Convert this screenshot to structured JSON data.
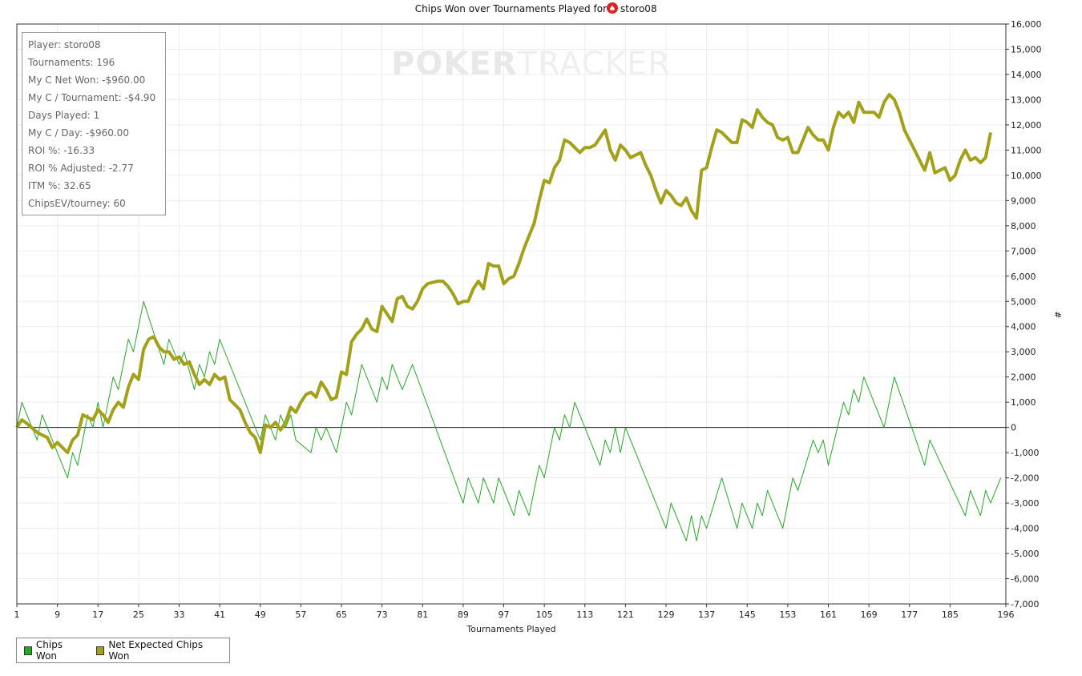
{
  "chart_data": {
    "type": "line",
    "title": "Chips Won over Tournaments Played for",
    "title_player": "storo08",
    "title_icon": "spade-suit-icon",
    "xlabel": "Tournaments Played",
    "ylabel": "#",
    "xlim": [
      1,
      196
    ],
    "ylim": [
      -7000,
      16000
    ],
    "x_ticks": [
      1,
      9,
      17,
      25,
      33,
      41,
      49,
      57,
      65,
      73,
      81,
      89,
      97,
      105,
      113,
      121,
      129,
      137,
      145,
      153,
      161,
      169,
      177,
      185,
      196
    ],
    "y_ticks": [
      "-7,000",
      "-6,000",
      "-5,000",
      "-4,000",
      "-3,000",
      "-2,000",
      "-1,000",
      "0",
      "1,000",
      "2,000",
      "3,000",
      "4,000",
      "5,000",
      "6,000",
      "7,000",
      "8,000",
      "9,000",
      "10,000",
      "11,000",
      "12,000",
      "13,000",
      "14,000",
      "15,000",
      "16,000"
    ],
    "grid": true,
    "legend_position": "bottom-left",
    "series": [
      {
        "name": "Chips Won",
        "color": "#22aa22",
        "points": [
          [
            1,
            0
          ],
          [
            2,
            1000
          ],
          [
            5,
            -500
          ],
          [
            6,
            500
          ],
          [
            11,
            -2000
          ],
          [
            12,
            -1000
          ],
          [
            13,
            -1500
          ],
          [
            15,
            500
          ],
          [
            16,
            0
          ],
          [
            17,
            1000
          ],
          [
            18,
            0
          ],
          [
            20,
            2000
          ],
          [
            21,
            1500
          ],
          [
            23,
            3500
          ],
          [
            24,
            3000
          ],
          [
            26,
            5000
          ],
          [
            30,
            2500
          ],
          [
            31,
            3500
          ],
          [
            33,
            2500
          ],
          [
            34,
            3000
          ],
          [
            36,
            1500
          ],
          [
            37,
            2500
          ],
          [
            38,
            2000
          ],
          [
            39,
            3000
          ],
          [
            40,
            2500
          ],
          [
            41,
            3500
          ],
          [
            48,
            0
          ],
          [
            49,
            -500
          ],
          [
            50,
            500
          ],
          [
            51,
            0
          ],
          [
            52,
            -500
          ],
          [
            53,
            500
          ],
          [
            54,
            0
          ],
          [
            55,
            500
          ],
          [
            56,
            -500
          ],
          [
            59,
            -1000
          ],
          [
            60,
            0
          ],
          [
            61,
            -500
          ],
          [
            62,
            0
          ],
          [
            64,
            -1000
          ],
          [
            66,
            1000
          ],
          [
            67,
            500
          ],
          [
            69,
            2500
          ],
          [
            72,
            1000
          ],
          [
            73,
            2000
          ],
          [
            74,
            1500
          ],
          [
            75,
            2500
          ],
          [
            76,
            2000
          ],
          [
            77,
            1500
          ],
          [
            79,
            2500
          ],
          [
            89,
            -3000
          ],
          [
            90,
            -2000
          ],
          [
            92,
            -3000
          ],
          [
            93,
            -2000
          ],
          [
            95,
            -3000
          ],
          [
            96,
            -2000
          ],
          [
            99,
            -3500
          ],
          [
            100,
            -2500
          ],
          [
            102,
            -3500
          ],
          [
            104,
            -1500
          ],
          [
            105,
            -2000
          ],
          [
            107,
            0
          ],
          [
            108,
            -500
          ],
          [
            109,
            500
          ],
          [
            110,
            0
          ],
          [
            111,
            1000
          ],
          [
            116,
            -1500
          ],
          [
            117,
            -500
          ],
          [
            118,
            -1000
          ],
          [
            119,
            0
          ],
          [
            120,
            -1000
          ],
          [
            121,
            0
          ],
          [
            129,
            -4000
          ],
          [
            130,
            -3000
          ],
          [
            133,
            -4500
          ],
          [
            134,
            -3500
          ],
          [
            135,
            -4500
          ],
          [
            136,
            -3500
          ],
          [
            137,
            -4000
          ],
          [
            140,
            -2000
          ],
          [
            143,
            -4000
          ],
          [
            144,
            -3000
          ],
          [
            146,
            -4000
          ],
          [
            147,
            -3000
          ],
          [
            148,
            -3500
          ],
          [
            149,
            -2500
          ],
          [
            152,
            -4000
          ],
          [
            154,
            -2000
          ],
          [
            155,
            -2500
          ],
          [
            158,
            -500
          ],
          [
            159,
            -1000
          ],
          [
            160,
            -500
          ],
          [
            161,
            -1500
          ],
          [
            164,
            1000
          ],
          [
            165,
            500
          ],
          [
            166,
            1500
          ],
          [
            167,
            1000
          ],
          [
            168,
            2000
          ],
          [
            172,
            0
          ],
          [
            174,
            2000
          ],
          [
            180,
            -1500
          ],
          [
            181,
            -500
          ],
          [
            188,
            -3500
          ],
          [
            189,
            -2500
          ],
          [
            191,
            -3500
          ],
          [
            192,
            -2500
          ],
          [
            193,
            -3000
          ],
          [
            195,
            -2000
          ]
        ]
      },
      {
        "name": "Net Expected Chips Won",
        "color": "#a3a01a",
        "points": [
          [
            1,
            0
          ],
          [
            2,
            300
          ],
          [
            3,
            150
          ],
          [
            5,
            -200
          ],
          [
            6,
            -300
          ],
          [
            7,
            -400
          ],
          [
            8,
            -800
          ],
          [
            9,
            -600
          ],
          [
            11,
            -1000
          ],
          [
            12,
            -500
          ],
          [
            13,
            -300
          ],
          [
            14,
            500
          ],
          [
            15,
            400
          ],
          [
            16,
            300
          ],
          [
            17,
            700
          ],
          [
            18,
            500
          ],
          [
            19,
            200
          ],
          [
            20,
            700
          ],
          [
            21,
            1000
          ],
          [
            22,
            800
          ],
          [
            23,
            1600
          ],
          [
            24,
            2100
          ],
          [
            25,
            1900
          ],
          [
            26,
            3100
          ],
          [
            27,
            3500
          ],
          [
            28,
            3600
          ],
          [
            29,
            3200
          ],
          [
            30,
            3000
          ],
          [
            31,
            3000
          ],
          [
            32,
            2700
          ],
          [
            33,
            2800
          ],
          [
            34,
            2500
          ],
          [
            35,
            2600
          ],
          [
            36,
            2100
          ],
          [
            37,
            1700
          ],
          [
            38,
            1900
          ],
          [
            39,
            1700
          ],
          [
            40,
            2100
          ],
          [
            41,
            1900
          ],
          [
            42,
            2000
          ],
          [
            43,
            1100
          ],
          [
            44,
            900
          ],
          [
            45,
            700
          ],
          [
            46,
            200
          ],
          [
            47,
            -200
          ],
          [
            48,
            -400
          ],
          [
            49,
            -1000
          ],
          [
            50,
            100
          ],
          [
            51,
            0
          ],
          [
            52,
            200
          ],
          [
            53,
            -100
          ],
          [
            54,
            200
          ],
          [
            55,
            800
          ],
          [
            56,
            600
          ],
          [
            57,
            1000
          ],
          [
            58,
            1300
          ],
          [
            59,
            1400
          ],
          [
            60,
            1200
          ],
          [
            61,
            1800
          ],
          [
            62,
            1500
          ],
          [
            63,
            1100
          ],
          [
            64,
            1200
          ],
          [
            65,
            2200
          ],
          [
            66,
            2100
          ],
          [
            67,
            3400
          ],
          [
            68,
            3700
          ],
          [
            69,
            3900
          ],
          [
            70,
            4300
          ],
          [
            71,
            3900
          ],
          [
            72,
            3800
          ],
          [
            73,
            4800
          ],
          [
            74,
            4500
          ],
          [
            75,
            4200
          ],
          [
            76,
            5100
          ],
          [
            77,
            5200
          ],
          [
            78,
            4800
          ],
          [
            79,
            4700
          ],
          [
            80,
            5000
          ],
          [
            81,
            5500
          ],
          [
            82,
            5700
          ],
          [
            84,
            5800
          ],
          [
            85,
            5800
          ],
          [
            86,
            5600
          ],
          [
            87,
            5300
          ],
          [
            88,
            4900
          ],
          [
            89,
            5000
          ],
          [
            90,
            5000
          ],
          [
            91,
            5500
          ],
          [
            92,
            5800
          ],
          [
            93,
            5500
          ],
          [
            94,
            6500
          ],
          [
            95,
            6400
          ],
          [
            96,
            6400
          ],
          [
            97,
            5700
          ],
          [
            98,
            5900
          ],
          [
            99,
            6000
          ],
          [
            100,
            6500
          ],
          [
            101,
            7100
          ],
          [
            102,
            7600
          ],
          [
            103,
            8100
          ],
          [
            104,
            9000
          ],
          [
            105,
            9800
          ],
          [
            106,
            9700
          ],
          [
            107,
            10300
          ],
          [
            108,
            10600
          ],
          [
            109,
            11400
          ],
          [
            110,
            11300
          ],
          [
            111,
            11100
          ],
          [
            112,
            10900
          ],
          [
            113,
            11100
          ],
          [
            114,
            11100
          ],
          [
            115,
            11200
          ],
          [
            116,
            11500
          ],
          [
            117,
            11800
          ],
          [
            118,
            11000
          ],
          [
            119,
            10600
          ],
          [
            120,
            11200
          ],
          [
            121,
            11000
          ],
          [
            122,
            10700
          ],
          [
            123,
            10800
          ],
          [
            124,
            10900
          ],
          [
            125,
            10400
          ],
          [
            126,
            10000
          ],
          [
            127,
            9400
          ],
          [
            128,
            8900
          ],
          [
            129,
            9400
          ],
          [
            130,
            9200
          ],
          [
            131,
            8900
          ],
          [
            132,
            8800
          ],
          [
            133,
            9100
          ],
          [
            134,
            8600
          ],
          [
            135,
            8300
          ],
          [
            136,
            10200
          ],
          [
            137,
            10300
          ],
          [
            138,
            11100
          ],
          [
            139,
            11800
          ],
          [
            140,
            11700
          ],
          [
            141,
            11500
          ],
          [
            142,
            11300
          ],
          [
            143,
            11300
          ],
          [
            144,
            12200
          ],
          [
            145,
            12100
          ],
          [
            146,
            11900
          ],
          [
            147,
            12600
          ],
          [
            148,
            12300
          ],
          [
            149,
            12100
          ],
          [
            150,
            12000
          ],
          [
            151,
            11500
          ],
          [
            152,
            11400
          ],
          [
            153,
            11500
          ],
          [
            154,
            10900
          ],
          [
            155,
            10900
          ],
          [
            156,
            11400
          ],
          [
            157,
            11900
          ],
          [
            158,
            11600
          ],
          [
            159,
            11400
          ],
          [
            160,
            11400
          ],
          [
            161,
            11000
          ],
          [
            162,
            11900
          ],
          [
            163,
            12500
          ],
          [
            164,
            12300
          ],
          [
            165,
            12500
          ],
          [
            166,
            12100
          ],
          [
            167,
            12900
          ],
          [
            168,
            12500
          ],
          [
            170,
            12500
          ],
          [
            171,
            12300
          ],
          [
            172,
            12900
          ],
          [
            173,
            13200
          ],
          [
            174,
            13000
          ],
          [
            175,
            12500
          ],
          [
            176,
            11800
          ],
          [
            177,
            11400
          ],
          [
            178,
            11000
          ],
          [
            179,
            10600
          ],
          [
            180,
            10200
          ],
          [
            181,
            10900
          ],
          [
            182,
            10100
          ],
          [
            183,
            10200
          ],
          [
            184,
            10300
          ],
          [
            185,
            9800
          ],
          [
            186,
            10000
          ],
          [
            187,
            10600
          ],
          [
            188,
            11000
          ],
          [
            189,
            10600
          ],
          [
            190,
            10700
          ],
          [
            191,
            10500
          ],
          [
            192,
            10700
          ],
          [
            193,
            11700
          ]
        ]
      }
    ]
  },
  "stats": [
    "Player: storo08",
    "Tournaments: 196",
    "My C Net Won: -$960.00",
    "My C / Tournament: -$4.90",
    "Days Played: 1",
    "My C / Day: -$960.00",
    "ROI %: -16.33",
    "ROI % Adjusted: -2.77",
    "ITM %: 32.65",
    "ChipsEV/tourney: 60"
  ],
  "watermark": {
    "dark": "POKER",
    "light": "TRACKER"
  },
  "legend": [
    {
      "label": "Chips Won",
      "color": "#22aa22"
    },
    {
      "label": "Net Expected Chips Won",
      "color": "#a3a01a"
    }
  ]
}
